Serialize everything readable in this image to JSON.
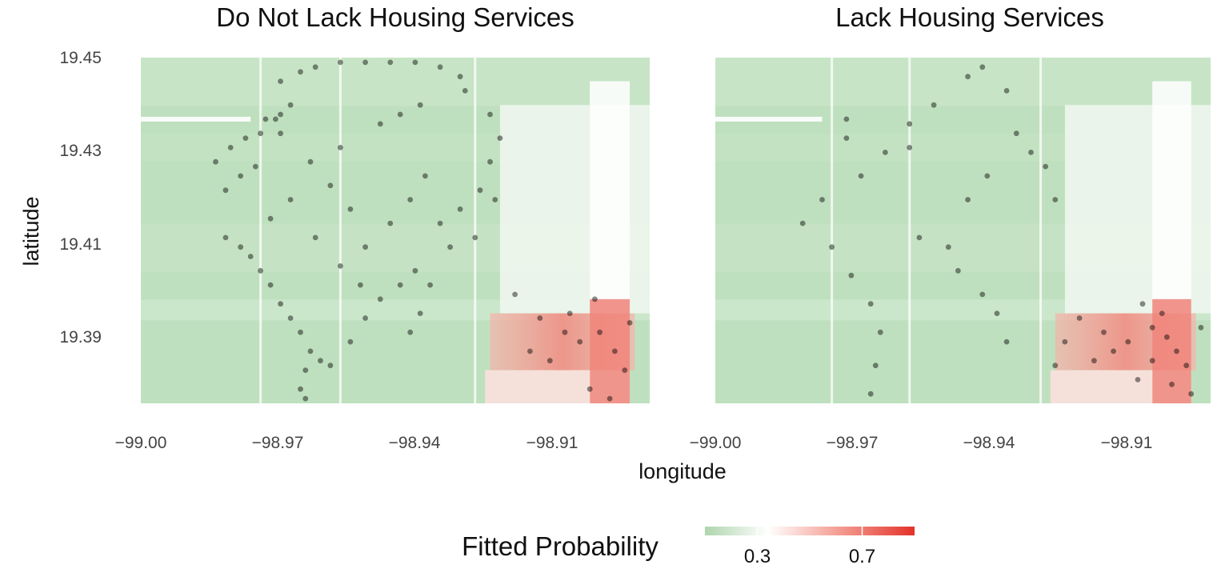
{
  "chart_data": [
    {
      "type": "scatter",
      "title": "Do Not Lack Housing Services",
      "xlabel": "longitude",
      "ylabel": "latitude",
      "xlim": [
        -99.0,
        -98.898
      ],
      "ylim": [
        19.377,
        19.45
      ],
      "x_ticks": [
        "-99.00",
        "-98.97",
        "-98.94",
        "-98.91"
      ],
      "y_ticks": [
        "19.45",
        "19.43",
        "19.41",
        "19.39"
      ],
      "background": "fitted probability surface (green = low, red = high)",
      "series": [
        {
          "values": [
            [
              -98.985,
              19.428
            ],
            [
              -98.982,
              19.431
            ],
            [
              -98.979,
              19.433
            ],
            [
              -98.976,
              19.434
            ],
            [
              -98.983,
              19.422
            ],
            [
              -98.98,
              19.425
            ],
            [
              -98.977,
              19.427
            ],
            [
              -98.975,
              19.437
            ],
            [
              -98.972,
              19.438
            ],
            [
              -98.97,
              19.44
            ],
            [
              -98.972,
              19.445
            ],
            [
              -98.968,
              19.447
            ],
            [
              -98.965,
              19.448
            ],
            [
              -98.96,
              19.449
            ],
            [
              -98.955,
              19.449
            ],
            [
              -98.95,
              19.449
            ],
            [
              -98.945,
              19.449
            ],
            [
              -98.94,
              19.448
            ],
            [
              -98.936,
              19.446
            ],
            [
              -98.935,
              19.443
            ],
            [
              -98.93,
              19.438
            ],
            [
              -98.928,
              19.433
            ],
            [
              -98.93,
              19.428
            ],
            [
              -98.929,
              19.42
            ],
            [
              -98.932,
              19.422
            ],
            [
              -98.973,
              19.437
            ],
            [
              -98.972,
              19.434
            ],
            [
              -98.96,
              19.431
            ],
            [
              -98.952,
              19.436
            ],
            [
              -98.948,
              19.438
            ],
            [
              -98.944,
              19.44
            ],
            [
              -98.983,
              19.412
            ],
            [
              -98.98,
              19.41
            ],
            [
              -98.978,
              19.408
            ],
            [
              -98.976,
              19.405
            ],
            [
              -98.974,
              19.402
            ],
            [
              -98.972,
              19.398
            ],
            [
              -98.97,
              19.395
            ],
            [
              -98.968,
              19.392
            ],
            [
              -98.966,
              19.388
            ],
            [
              -98.967,
              19.384
            ],
            [
              -98.968,
              19.38
            ],
            [
              -98.967,
              19.378
            ],
            [
              -98.964,
              19.386
            ],
            [
              -98.962,
              19.385
            ],
            [
              -98.958,
              19.39
            ],
            [
              -98.955,
              19.395
            ],
            [
              -98.952,
              19.399
            ],
            [
              -98.948,
              19.402
            ],
            [
              -98.945,
              19.405
            ],
            [
              -98.942,
              19.402
            ],
            [
              -98.944,
              19.396
            ],
            [
              -98.946,
              19.392
            ],
            [
              -98.94,
              19.415
            ],
            [
              -98.936,
              19.418
            ],
            [
              -98.933,
              19.412
            ],
            [
              -98.938,
              19.41
            ],
            [
              -98.925,
              19.4
            ],
            [
              -98.92,
              19.395
            ],
            [
              -98.915,
              19.392
            ],
            [
              -98.912,
              19.39
            ],
            [
              -98.908,
              19.392
            ],
            [
              -98.905,
              19.388
            ],
            [
              -98.903,
              19.384
            ],
            [
              -98.91,
              19.38
            ],
            [
              -98.906,
              19.378
            ],
            [
              -98.918,
              19.386
            ],
            [
              -98.922,
              19.388
            ],
            [
              -98.914,
              19.396
            ],
            [
              -98.909,
              19.399
            ],
            [
              -98.902,
              19.394
            ],
            [
              -98.955,
              19.41
            ],
            [
              -98.95,
              19.415
            ],
            [
              -98.946,
              19.42
            ],
            [
              -98.943,
              19.425
            ],
            [
              -98.958,
              19.418
            ],
            [
              -98.962,
              19.423
            ],
            [
              -98.966,
              19.428
            ],
            [
              -98.97,
              19.42
            ],
            [
              -98.974,
              19.416
            ],
            [
              -98.965,
              19.412
            ],
            [
              -98.96,
              19.406
            ],
            [
              -98.956,
              19.402
            ]
          ]
        }
      ]
    },
    {
      "type": "scatter",
      "title": "Lack Housing Services",
      "xlabel": "longitude",
      "ylabel": "",
      "xlim": [
        -99.0,
        -98.898
      ],
      "ylim": [
        19.377,
        19.45
      ],
      "x_ticks": [
        "-99.00",
        "-98.97",
        "-98.94",
        "-98.91"
      ],
      "background": "fitted probability surface (green = low, red = high)",
      "series": [
        {
          "values": [
            [
              -98.973,
              19.437
            ],
            [
              -98.973,
              19.433
            ],
            [
              -98.96,
              19.431
            ],
            [
              -98.945,
              19.448
            ],
            [
              -98.94,
              19.443
            ],
            [
              -98.938,
              19.434
            ],
            [
              -98.93,
              19.42
            ],
            [
              -98.948,
              19.446
            ],
            [
              -98.955,
              19.44
            ],
            [
              -98.96,
              19.436
            ],
            [
              -98.965,
              19.43
            ],
            [
              -98.97,
              19.425
            ],
            [
              -98.978,
              19.42
            ],
            [
              -98.982,
              19.415
            ],
            [
              -98.976,
              19.41
            ],
            [
              -98.972,
              19.404
            ],
            [
              -98.968,
              19.398
            ],
            [
              -98.966,
              19.392
            ],
            [
              -98.967,
              19.385
            ],
            [
              -98.968,
              19.379
            ],
            [
              -98.958,
              19.412
            ],
            [
              -98.952,
              19.41
            ],
            [
              -98.95,
              19.405
            ],
            [
              -98.945,
              19.4
            ],
            [
              -98.942,
              19.396
            ],
            [
              -98.94,
              19.39
            ],
            [
              -98.948,
              19.42
            ],
            [
              -98.944,
              19.425
            ],
            [
              -98.925,
              19.395
            ],
            [
              -98.92,
              19.392
            ],
            [
              -98.915,
              19.39
            ],
            [
              -98.91,
              19.393
            ],
            [
              -98.907,
              19.391
            ],
            [
              -98.905,
              19.388
            ],
            [
              -98.903,
              19.385
            ],
            [
              -98.91,
              19.386
            ],
            [
              -98.913,
              19.382
            ],
            [
              -98.918,
              19.388
            ],
            [
              -98.922,
              19.386
            ],
            [
              -98.906,
              19.381
            ],
            [
              -98.902,
              19.379
            ],
            [
              -98.908,
              19.396
            ],
            [
              -98.912,
              19.398
            ],
            [
              -98.9,
              19.393
            ],
            [
              -98.928,
              19.39
            ],
            [
              -98.93,
              19.385
            ],
            [
              -98.935,
              19.43
            ],
            [
              -98.932,
              19.427
            ]
          ]
        }
      ]
    }
  ],
  "legend": {
    "title": "Fitted Probability",
    "ticks": [
      "0.3",
      "0.7"
    ],
    "tick_values": [
      0.3,
      0.7
    ],
    "range": [
      0.1,
      0.9
    ],
    "colors": {
      "low": "#aed5ad",
      "mid": "#ffffff",
      "high": "#e3322b"
    }
  }
}
